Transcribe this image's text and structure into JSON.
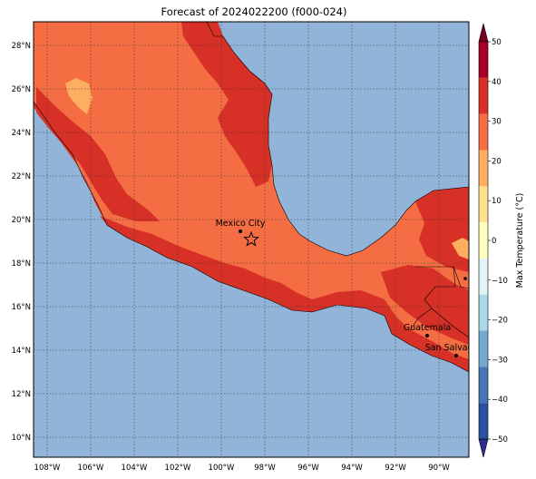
{
  "title": "Forecast of 2024022200 (f000-024)",
  "colorbar": {
    "label": "Max Temperature (°C)",
    "ticks": [
      "50",
      "40",
      "30",
      "20",
      "10",
      "0",
      "−10",
      "−20",
      "−30",
      "−40",
      "−50"
    ],
    "colors": [
      "#2b2f8f",
      "#2c4f9e",
      "#4575b4",
      "#74a9cf",
      "#abd9e9",
      "#e0f3f8",
      "#ffffbf",
      "#fee090",
      "#fdae61",
      "#f46d43",
      "#d73027",
      "#a50026",
      "#7a0020"
    ]
  },
  "map": {
    "ocean_color": "#92b4d9",
    "warm_color": "#f46d43",
    "hot_color": "#d73027",
    "mild_color": "#fdae61",
    "lat_labels": [
      "28°N",
      "26°N",
      "24°N",
      "22°N",
      "20°N",
      "18°N",
      "16°N",
      "14°N",
      "12°N",
      "10°N"
    ],
    "lon_labels": [
      "108°W",
      "106°W",
      "104°W",
      "102°W",
      "100°W",
      "98°W",
      "96°W",
      "94°W",
      "92°W",
      "90°W"
    ],
    "cities": [
      {
        "name": "Mexico City"
      },
      {
        "name": "Guatemala"
      },
      {
        "name": "San Salvador"
      }
    ],
    "marker": "star-icon"
  }
}
